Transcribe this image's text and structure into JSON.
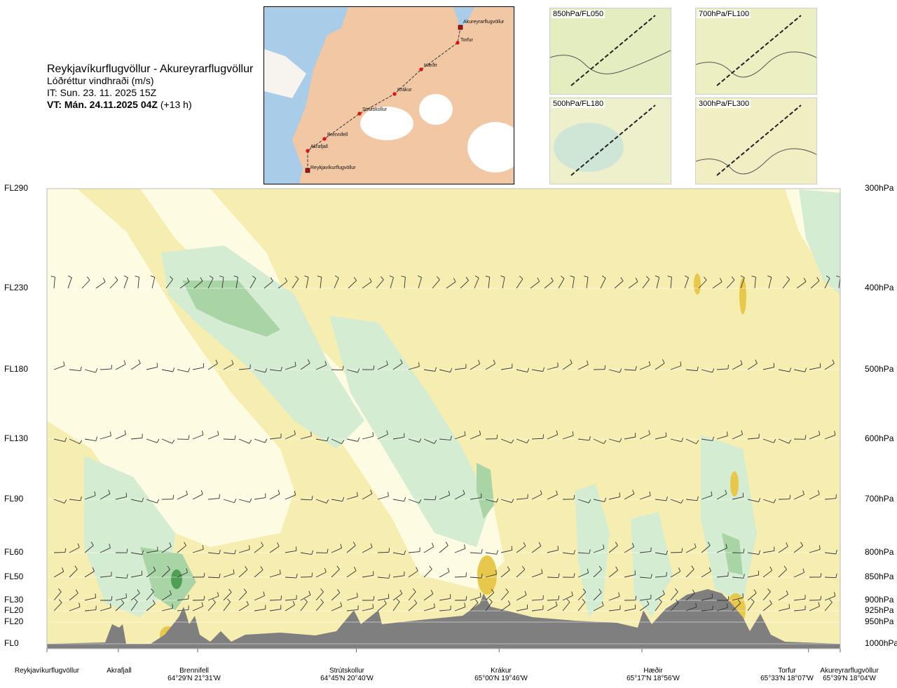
{
  "title": {
    "route": "Reykjavíkurflugvöllur - Akureyrarflugvöllur",
    "variable": "Lóðréttur vindhraði (m/s)",
    "issue_time": "IT: Sun. 23. 11. 2025 15Z",
    "valid_time": "VT: Mán. 24.11.2025 04Z",
    "lead_time": "(+13 h)"
  },
  "route_map": {
    "points": [
      "Akureyrarflugvöllur",
      "Torfur",
      "Hæðir",
      "Krákur",
      "Strútskollur",
      "Brennifell",
      "Akrafjall",
      "Reykjavíkurflugvöllur"
    ]
  },
  "level_maps": [
    {
      "label": "850hPa/FL050"
    },
    {
      "label": "700hPa/FL100"
    },
    {
      "label": "500hPa/FL180"
    },
    {
      "label": "300hPa/FL300"
    }
  ],
  "chart_data": {
    "type": "heatmap",
    "title": "Lóðréttur vindhraði (m/s)",
    "x_axis": "route distance (Reykjavíkurflugvöllur → Akureyrarflugvöllur)",
    "flight_levels": [
      "FL290",
      "FL230",
      "FL180",
      "FL130",
      "FL90",
      "FL60",
      "FL50",
      "FL30",
      "FL20",
      "FL20",
      "FL0"
    ],
    "pressure_levels": [
      "300hPa",
      "400hPa",
      "500hPa",
      "600hPa",
      "700hPa",
      "800hPa",
      "850hPa",
      "900hPa",
      "925hPa",
      "950hPa",
      "1000hPa"
    ],
    "pressure_values": [
      300,
      400,
      500,
      600,
      700,
      800,
      850,
      900,
      925,
      950,
      1000
    ],
    "waypoints": [
      {
        "name": "Reykjavíkurflugvöllur",
        "coord": "",
        "frac": 0.0
      },
      {
        "name": "Akrafjall",
        "coord": "",
        "frac": 0.09
      },
      {
        "name": "Brennifell",
        "coord": "64°29'N 21°31'W",
        "frac": 0.19
      },
      {
        "name": "Strútskollur",
        "coord": "64°45'N 20°40'W",
        "frac": 0.39
      },
      {
        "name": "Krákur",
        "coord": "65°00'N 19°46'W",
        "frac": 0.57
      },
      {
        "name": "Hæðir",
        "coord": "65°17'N 18°56'W",
        "frac": 0.75
      },
      {
        "name": "Torfur",
        "coord": "65°33'N 18°07'W",
        "frac": 0.96
      },
      {
        "name": "Akureyrarflugvöllur",
        "coord": "65°39'N 18°04'W",
        "frac": 1.0
      }
    ],
    "colors": {
      "strong_down": "#e8c84a",
      "weak_down": "#f3efb0",
      "neutral": "#fdfbe2",
      "weak_up": "#d4ecd1",
      "moderate_up": "#a8d4a6",
      "strong_up": "#4f9f52",
      "terrain": "#7f7f7f",
      "background": "#f6eeb0"
    }
  }
}
